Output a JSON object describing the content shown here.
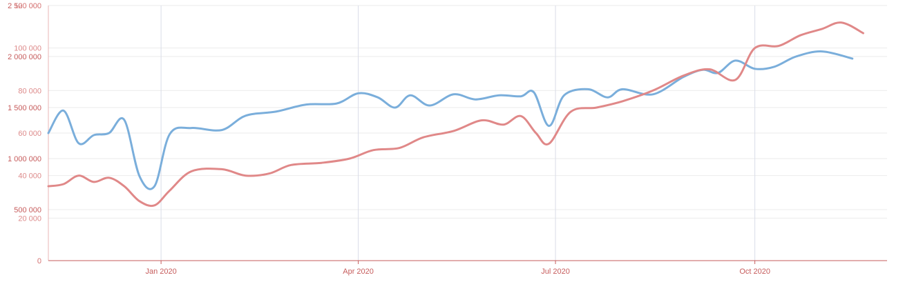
{
  "chart_data": {
    "type": "line",
    "grid": true,
    "x_domain": [
      "2019-11-10",
      "2020-12-01"
    ],
    "x_ticks": [
      {
        "date": "2020-01-01",
        "label": "Jan 2020"
      },
      {
        "date": "2020-04-01",
        "label": "Apr 2020"
      },
      {
        "date": "2020-07-01",
        "label": "Jul 2020"
      },
      {
        "date": "2020-10-01",
        "label": "Oct 2020"
      }
    ],
    "axes": {
      "blue": {
        "ylim": [
          0,
          2500000
        ],
        "ticks": [
          {
            "v": 0,
            "label": "0"
          },
          {
            "v": 500000,
            "label": "500 000"
          },
          {
            "v": 1000000,
            "label": "1 000 000"
          },
          {
            "v": 1500000,
            "label": "1 500 000"
          },
          {
            "v": 2000000,
            "label": "2 000 000"
          },
          {
            "v": 2500000,
            "label": "2 500 000"
          }
        ],
        "color": "#c65b5b"
      },
      "red": {
        "ylim": [
          0,
          120000
        ],
        "ticks": [
          {
            "v": 0,
            "label": "0"
          },
          {
            "v": 20000,
            "label": "20 000"
          },
          {
            "v": 40000,
            "label": "40 000"
          },
          {
            "v": 60000,
            "label": "60 000"
          },
          {
            "v": 80000,
            "label": "80 000"
          },
          {
            "v": 100000,
            "label": "100 000"
          },
          {
            "v": 120000,
            "label": "120 000"
          }
        ],
        "color": "#dd8a8a"
      }
    },
    "series": [
      {
        "axis": "blue",
        "color": "#7aaedb",
        "points": [
          [
            "2019-11-10",
            1250000
          ],
          [
            "2019-11-17",
            1470000
          ],
          [
            "2019-11-24",
            1150000
          ],
          [
            "2019-12-01",
            1230000
          ],
          [
            "2019-12-08",
            1250000
          ],
          [
            "2019-12-15",
            1380000
          ],
          [
            "2019-12-22",
            830000
          ],
          [
            "2019-12-29",
            730000
          ],
          [
            "2020-01-05",
            1240000
          ],
          [
            "2020-01-15",
            1300000
          ],
          [
            "2020-01-29",
            1280000
          ],
          [
            "2020-02-09",
            1420000
          ],
          [
            "2020-02-23",
            1460000
          ],
          [
            "2020-03-08",
            1530000
          ],
          [
            "2020-03-22",
            1540000
          ],
          [
            "2020-04-01",
            1640000
          ],
          [
            "2020-04-10",
            1600000
          ],
          [
            "2020-04-18",
            1500000
          ],
          [
            "2020-04-25",
            1620000
          ],
          [
            "2020-05-04",
            1520000
          ],
          [
            "2020-05-15",
            1630000
          ],
          [
            "2020-05-25",
            1580000
          ],
          [
            "2020-06-05",
            1620000
          ],
          [
            "2020-06-15",
            1610000
          ],
          [
            "2020-06-21",
            1650000
          ],
          [
            "2020-06-28",
            1320000
          ],
          [
            "2020-07-05",
            1620000
          ],
          [
            "2020-07-16",
            1680000
          ],
          [
            "2020-07-25",
            1600000
          ],
          [
            "2020-08-01",
            1680000
          ],
          [
            "2020-08-15",
            1630000
          ],
          [
            "2020-08-29",
            1800000
          ],
          [
            "2020-09-07",
            1870000
          ],
          [
            "2020-09-14",
            1840000
          ],
          [
            "2020-09-22",
            1960000
          ],
          [
            "2020-10-01",
            1880000
          ],
          [
            "2020-10-10",
            1900000
          ],
          [
            "2020-10-20",
            2000000
          ],
          [
            "2020-11-01",
            2050000
          ],
          [
            "2020-11-15",
            1980000
          ]
        ]
      },
      {
        "axis": "red",
        "color": "#e08888",
        "points": [
          [
            "2019-11-10",
            35000
          ],
          [
            "2019-11-17",
            36000
          ],
          [
            "2019-11-24",
            40000
          ],
          [
            "2019-12-01",
            37000
          ],
          [
            "2019-12-08",
            39000
          ],
          [
            "2019-12-15",
            35000
          ],
          [
            "2019-12-22",
            28000
          ],
          [
            "2019-12-29",
            26000
          ],
          [
            "2020-01-05",
            33000
          ],
          [
            "2020-01-15",
            42000
          ],
          [
            "2020-01-29",
            43000
          ],
          [
            "2020-02-09",
            40000
          ],
          [
            "2020-02-20",
            41000
          ],
          [
            "2020-03-01",
            45000
          ],
          [
            "2020-03-15",
            46000
          ],
          [
            "2020-03-28",
            48000
          ],
          [
            "2020-04-08",
            52000
          ],
          [
            "2020-04-20",
            53000
          ],
          [
            "2020-05-01",
            58000
          ],
          [
            "2020-05-15",
            61000
          ],
          [
            "2020-05-28",
            66000
          ],
          [
            "2020-06-07",
            64000
          ],
          [
            "2020-06-15",
            68000
          ],
          [
            "2020-06-22",
            60000
          ],
          [
            "2020-06-28",
            55000
          ],
          [
            "2020-07-08",
            70000
          ],
          [
            "2020-07-20",
            72000
          ],
          [
            "2020-08-01",
            75000
          ],
          [
            "2020-08-15",
            80000
          ],
          [
            "2020-08-29",
            87000
          ],
          [
            "2020-09-10",
            90000
          ],
          [
            "2020-09-22",
            85000
          ],
          [
            "2020-10-01",
            100000
          ],
          [
            "2020-10-12",
            101000
          ],
          [
            "2020-10-22",
            106000
          ],
          [
            "2020-11-01",
            109000
          ],
          [
            "2020-11-10",
            112000
          ],
          [
            "2020-11-20",
            107000
          ]
        ]
      }
    ]
  }
}
